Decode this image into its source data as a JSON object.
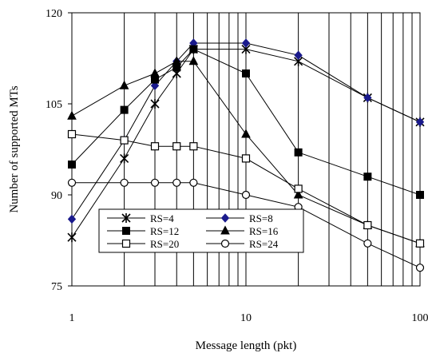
{
  "chart_data": {
    "type": "line",
    "x_scale": "log",
    "xlim": [
      1,
      100
    ],
    "ylim": [
      75,
      120
    ],
    "xlabel": "Message length (pkt)",
    "ylabel": "Number of supported MTs",
    "x_tick_labels": [
      "1",
      "10",
      "100"
    ],
    "y_tick_labels": [
      "75",
      "90",
      "105",
      "120"
    ],
    "y_ticks": [
      75,
      90,
      105,
      120
    ],
    "x_ticks": [
      1,
      10,
      100
    ],
    "grid": "vertical log gridlines",
    "legend_position": "bottom-left inside plot",
    "x": [
      1,
      2,
      3,
      4,
      5,
      10,
      20,
      50,
      100
    ],
    "series": [
      {
        "name": "RS=4",
        "marker": "asterisk",
        "color": "#000000",
        "values": [
          83,
          96,
          105,
          110,
          114,
          114,
          112,
          106,
          102
        ]
      },
      {
        "name": "RS=8",
        "marker": "diamond",
        "color": "#1a1a8c",
        "values": [
          86,
          99,
          108,
          112,
          115,
          115,
          113,
          106,
          102
        ]
      },
      {
        "name": "RS=12",
        "marker": "filled-square",
        "color": "#000000",
        "values": [
          95,
          104,
          109,
          111,
          114,
          110,
          97,
          93,
          90
        ]
      },
      {
        "name": "RS=16",
        "marker": "filled-triangle",
        "color": "#000000",
        "values": [
          103,
          108,
          110,
          112,
          112,
          100,
          90,
          85,
          82
        ]
      },
      {
        "name": "RS=20",
        "marker": "open-square",
        "color": "#000000",
        "values": [
          100,
          99,
          98,
          98,
          98,
          96,
          91,
          85,
          82
        ]
      },
      {
        "name": "RS=24",
        "marker": "open-circle",
        "color": "#000000",
        "values": [
          92,
          92,
          92,
          92,
          92,
          90,
          88,
          82,
          78
        ]
      }
    ]
  }
}
